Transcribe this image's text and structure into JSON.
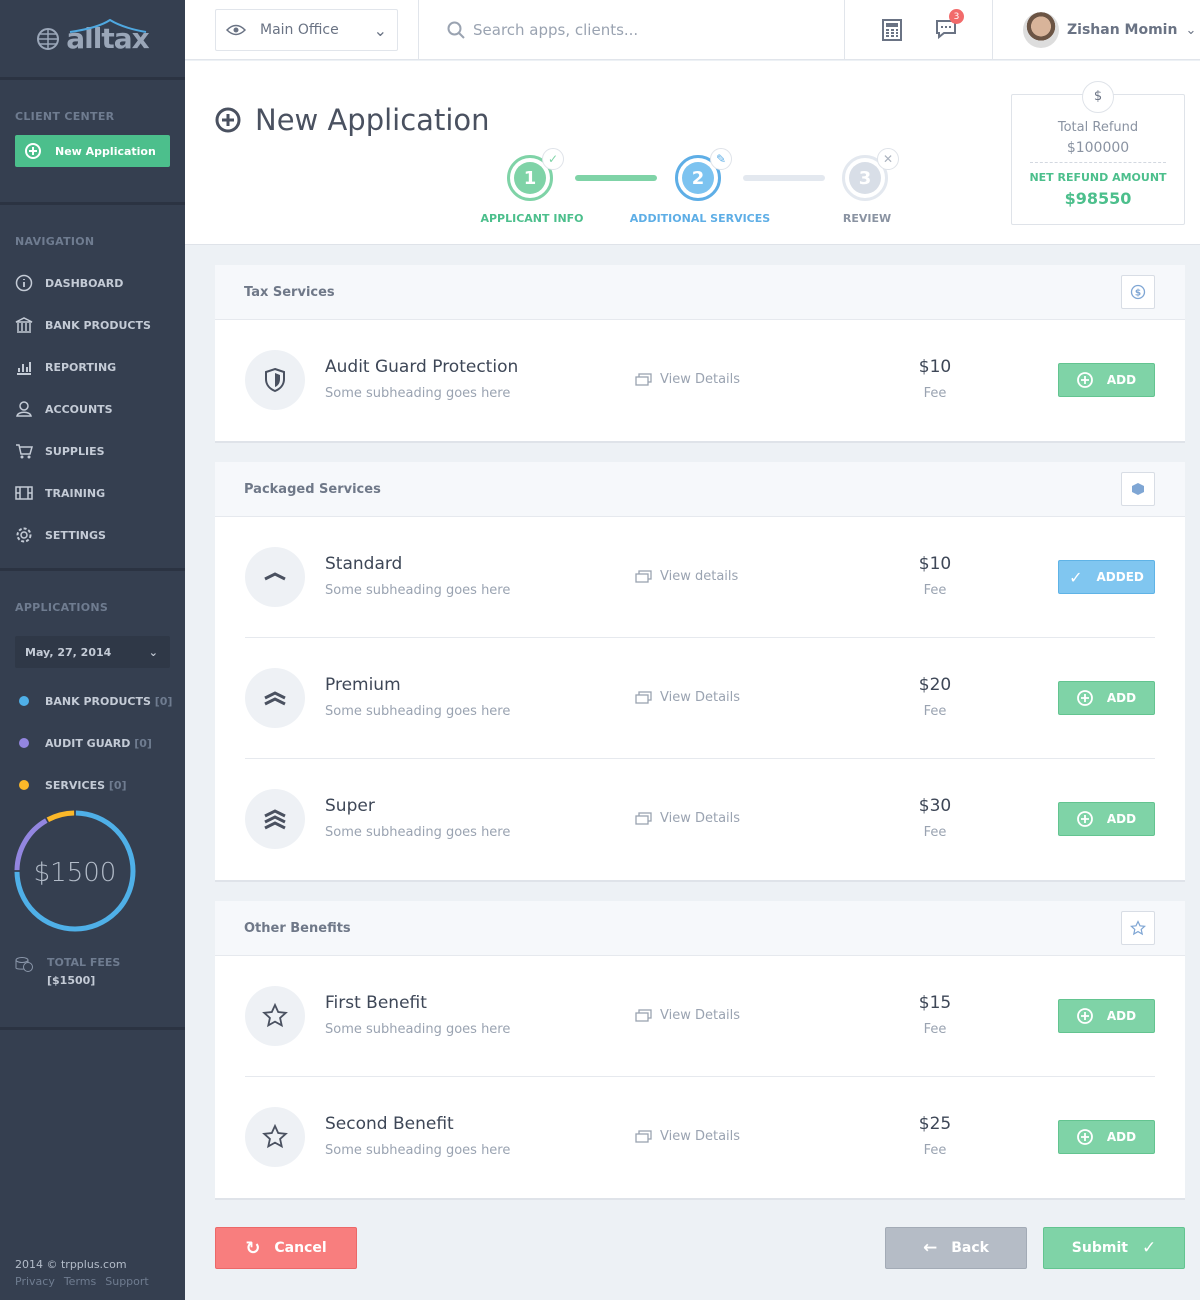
{
  "brand": {
    "name": "alltax"
  },
  "sidebar": {
    "client_center": "CLIENT CENTER",
    "new_application": "New Application",
    "navigation": "NAVIGATION",
    "nav": [
      {
        "label": "DASHBOARD",
        "icon": "dashboard-icon"
      },
      {
        "label": "BANK PRODUCTS",
        "icon": "bank-icon"
      },
      {
        "label": "REPORTING",
        "icon": "bar-chart-icon"
      },
      {
        "label": "ACCOUNTS",
        "icon": "user-icon"
      },
      {
        "label": "SUPPLIES",
        "icon": "cart-icon"
      },
      {
        "label": "TRAINING",
        "icon": "film-icon"
      },
      {
        "label": "SETTINGS",
        "icon": "gear-icon"
      }
    ],
    "applications": "APPLICATIONS",
    "date": "May, 27, 2014",
    "legend": [
      {
        "label": "BANK PRODUCTS",
        "count": "[0]",
        "color": "#4fb0e8"
      },
      {
        "label": "AUDIT GUARD",
        "count": "[0]",
        "color": "#9386e0"
      },
      {
        "label": "SERVICES",
        "count": "[0]",
        "color": "#fbb829"
      }
    ],
    "donut": {
      "value": "$1500",
      "segments": [
        {
          "name": "BANK PRODUCTS",
          "fraction": 0.75,
          "color": "#4fb0e8"
        },
        {
          "name": "AUDIT GUARD",
          "fraction": 0.17,
          "color": "#9386e0"
        },
        {
          "name": "SERVICES",
          "fraction": 0.08,
          "color": "#fbb829"
        }
      ]
    },
    "total_fees_label": "TOTAL FEES",
    "total_fees": "[$1500]",
    "footer": {
      "copyright": "2014 © trpplus.com",
      "links": [
        "Privacy",
        "Terms",
        "Support"
      ]
    }
  },
  "topbar": {
    "office": "Main Office",
    "search_placeholder": "Search apps, clients...",
    "notifications": "3",
    "user": "Zishan Momin"
  },
  "page": {
    "title": "New Application",
    "steps": [
      {
        "num": "1",
        "label": "APPLICANT INFO",
        "state": "done"
      },
      {
        "num": "2",
        "label": "ADDITIONAL SERVICES",
        "state": "active"
      },
      {
        "num": "3",
        "label": "REVIEW",
        "state": "pending"
      }
    ],
    "refund": {
      "total_label": "Total Refund",
      "total": "$100000",
      "net_label": "NET REFUND AMOUNT",
      "net": "$98550"
    }
  },
  "sections": [
    {
      "title": "Tax Services",
      "icon": "dollar-icon",
      "items": [
        {
          "name": "Audit Guard Protection",
          "sub": "Some subheading goes here",
          "view": "View Details",
          "price": "$10",
          "fee": "Fee",
          "action": "ADD",
          "icon": "shield-icon"
        }
      ]
    },
    {
      "title": "Packaged Services",
      "icon": "box-icon",
      "items": [
        {
          "name": "Standard",
          "sub": "Some subheading goes here",
          "view": "View details",
          "price": "$10",
          "fee": "Fee",
          "action": "ADDED",
          "icon": "chevron-up-icon"
        },
        {
          "name": "Premium",
          "sub": "Some subheading goes here",
          "view": "View Details",
          "price": "$20",
          "fee": "Fee",
          "action": "ADD",
          "icon": "double-chevron-icon"
        },
        {
          "name": "Super",
          "sub": "Some subheading goes here",
          "view": "View Details",
          "price": "$30",
          "fee": "Fee",
          "action": "ADD",
          "icon": "triple-chevron-icon"
        }
      ]
    },
    {
      "title": "Other Benefits",
      "icon": "star-icon",
      "items": [
        {
          "name": "First Benefit",
          "sub": "Some subheading goes here",
          "view": "View Details",
          "price": "$15",
          "fee": "Fee",
          "action": "ADD",
          "icon": "star-icon"
        },
        {
          "name": "Second Benefit",
          "sub": "Some subheading goes here",
          "view": "View Details",
          "price": "$25",
          "fee": "Fee",
          "action": "ADD",
          "icon": "star-icon"
        }
      ]
    }
  ],
  "actions": {
    "cancel": "Cancel",
    "back": "Back",
    "submit": "Submit"
  }
}
